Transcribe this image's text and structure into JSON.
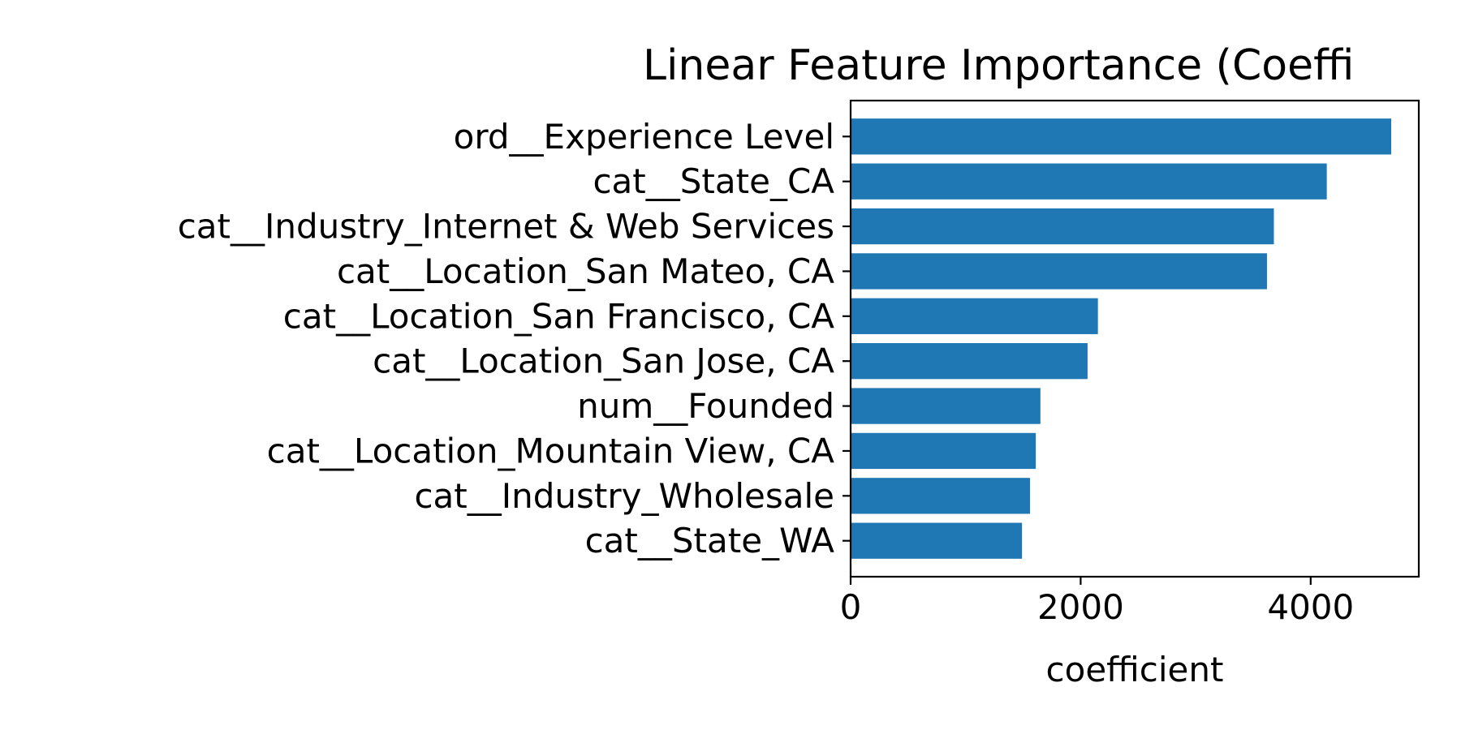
{
  "chart_data": {
    "type": "bar",
    "orientation": "horizontal",
    "title": "Linear Feature Importance (Coeffi",
    "xlabel": "coefficient",
    "ylabel": "",
    "categories": [
      "ord__Experience Level",
      "cat__State_CA",
      "cat__Industry_Internet & Web Services",
      "cat__Location_San Mateo, CA",
      "cat__Location_San Francisco, CA",
      "cat__Location_San Jose, CA",
      "num__Founded",
      "cat__Location_Mountain View, CA",
      "cat__Industry_Wholesale",
      "cat__State_WA"
    ],
    "values": [
      4700,
      4140,
      3680,
      3620,
      2150,
      2060,
      1650,
      1610,
      1560,
      1490
    ],
    "xlim": [
      0,
      4940
    ],
    "xticks": [
      0,
      2000,
      4000
    ],
    "xtick_labels": [
      "0",
      "2000",
      "4000"
    ],
    "bar_color": "#1f77b4",
    "grid": false,
    "legend": "none"
  }
}
